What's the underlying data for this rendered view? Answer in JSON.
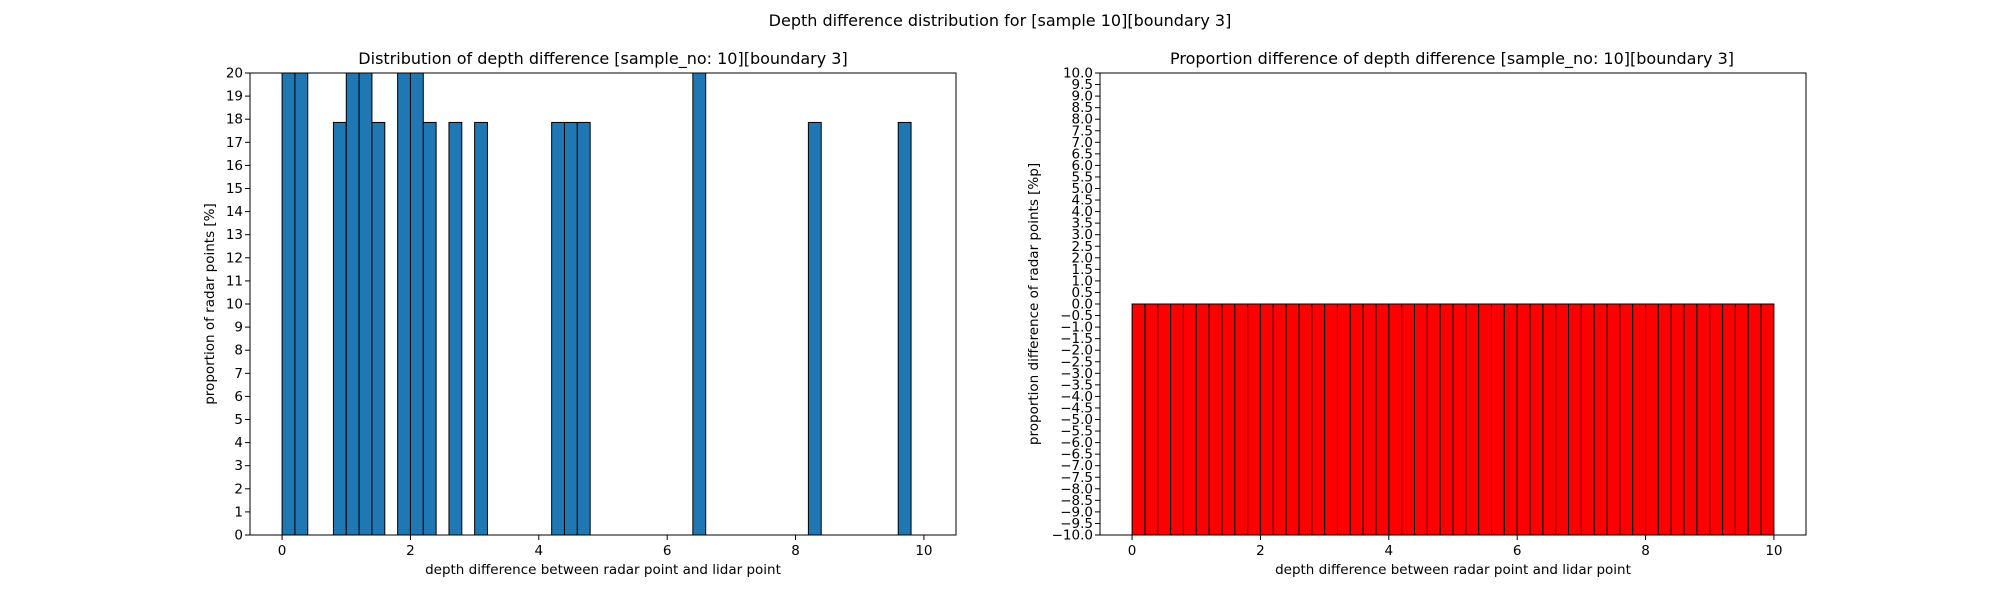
{
  "figure": {
    "suptitle": "Depth difference distribution for [sample 10][boundary 3]"
  },
  "chart_data": [
    {
      "type": "bar",
      "title": "Distribution of depth difference [sample_no: 10][boundary 3]",
      "xlabel": "depth difference between radar point and lidar point",
      "ylabel": "proportion of radar points [%]",
      "xlim": [
        -0.5,
        10.5
      ],
      "ylim": [
        0,
        20
      ],
      "xticks": [
        0,
        2,
        4,
        6,
        8,
        10
      ],
      "yticks": [
        0,
        1,
        2,
        3,
        4,
        5,
        6,
        7,
        8,
        9,
        10,
        11,
        12,
        13,
        14,
        15,
        16,
        17,
        18,
        19,
        20
      ],
      "bin_width": 0.2,
      "color": "#1f77b4",
      "edgecolor": "#000000",
      "bars": [
        {
          "x": 0.0,
          "value": 20
        },
        {
          "x": 0.2,
          "value": 20
        },
        {
          "x": 0.8,
          "value": 17.86
        },
        {
          "x": 1.0,
          "value": 20
        },
        {
          "x": 1.2,
          "value": 20
        },
        {
          "x": 1.4,
          "value": 17.86
        },
        {
          "x": 1.8,
          "value": 20
        },
        {
          "x": 2.0,
          "value": 20
        },
        {
          "x": 2.2,
          "value": 17.86
        },
        {
          "x": 2.6,
          "value": 17.86
        },
        {
          "x": 3.0,
          "value": 17.86
        },
        {
          "x": 4.2,
          "value": 17.86
        },
        {
          "x": 4.4,
          "value": 17.86
        },
        {
          "x": 4.6,
          "value": 17.86
        },
        {
          "x": 6.4,
          "value": 20
        },
        {
          "x": 8.2,
          "value": 17.86
        },
        {
          "x": 9.6,
          "value": 17.86
        }
      ],
      "grid": false
    },
    {
      "type": "bar",
      "title": "Proportion difference of depth difference [sample_no: 10][boundary 3]",
      "xlabel": "depth difference between radar point and lidar point",
      "ylabel": "proportion difference of radar points [%p]",
      "xlim": [
        -0.5,
        10.5
      ],
      "ylim": [
        -10,
        10
      ],
      "xticks": [
        0,
        2,
        4,
        6,
        8,
        10
      ],
      "ytick_step": 0.5,
      "bin_width": 0.2,
      "bin_start": 0,
      "bin_count": 50,
      "color": "#ff0000",
      "edgecolor": "#000000",
      "values_note_free": true,
      "value_all_bins": -10,
      "grid": false
    }
  ]
}
